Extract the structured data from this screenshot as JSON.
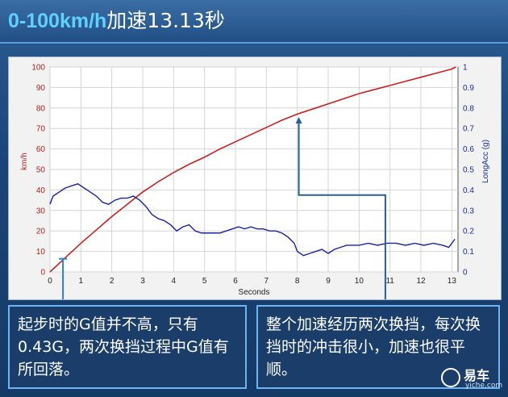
{
  "header": {
    "title_highlight": "0-100km/h",
    "title_rest": "加速13.13秒"
  },
  "callouts": {
    "left": "起步时的G值并不高，只有0.43G，两次换挡过程中G值有所回落。",
    "right": "整个加速经历两次换挡，每次换挡时的冲击很小，加速也很平顺。"
  },
  "logo": {
    "text": "易车",
    "sub": "yiche.com"
  },
  "colors": {
    "speed_line": "#cc1f1f",
    "acc_line": "#1c22a8",
    "callout_border": "#6fb3f0",
    "left_axis_text": "#b01f1f",
    "right_axis_text": "#1a2a9c"
  },
  "chart_data": {
    "type": "line",
    "xlabel": "Seconds",
    "ylabel": "km/h",
    "y2label": "LongAcc (g)",
    "xlim": [
      0,
      13.2
    ],
    "ylim": [
      0,
      100
    ],
    "y2lim": [
      0,
      1
    ],
    "x_ticks": [
      "0",
      "1",
      "2",
      "3",
      "4",
      "5",
      "6",
      "7",
      "8",
      "9",
      "10",
      "11",
      "12",
      "13"
    ],
    "y_ticks": [
      "0",
      "10",
      "20",
      "30",
      "40",
      "50",
      "60",
      "70",
      "80",
      "90",
      "100"
    ],
    "y2_ticks": [
      "0",
      "0.1",
      "0.2",
      "0.3",
      "0.4",
      "0.5",
      "0.6",
      "0.7",
      "0.8",
      "0.9",
      "1"
    ],
    "grid": true,
    "series": [
      {
        "name": "km/h",
        "axis": "left",
        "x": [
          0,
          0.5,
          1,
          1.5,
          2,
          2.5,
          3,
          3.5,
          4,
          4.5,
          5,
          5.5,
          6,
          6.5,
          7,
          7.5,
          8,
          8.5,
          9,
          9.5,
          10,
          10.5,
          11,
          11.5,
          12,
          12.5,
          13,
          13.13
        ],
        "values": [
          0,
          7,
          14,
          20.5,
          27,
          33,
          39,
          44,
          48.5,
          52.5,
          56,
          60,
          63.5,
          67,
          70.5,
          74,
          77,
          79.5,
          82,
          84.5,
          87,
          89,
          91,
          93,
          95,
          97,
          99,
          100
        ]
      },
      {
        "name": "LongAcc (g)",
        "axis": "right",
        "x": [
          0,
          0.1,
          0.3,
          0.5,
          0.7,
          0.9,
          1.1,
          1.3,
          1.5,
          1.7,
          1.9,
          2.1,
          2.3,
          2.5,
          2.7,
          2.9,
          3.1,
          3.3,
          3.5,
          3.7,
          3.9,
          4.1,
          4.3,
          4.5,
          4.7,
          4.9,
          5.1,
          5.3,
          5.5,
          5.7,
          5.9,
          6.1,
          6.3,
          6.5,
          6.7,
          6.9,
          7.1,
          7.3,
          7.5,
          7.7,
          7.9,
          8.0,
          8.2,
          8.4,
          8.6,
          8.8,
          9.0,
          9.2,
          9.4,
          9.6,
          9.8,
          10.0,
          10.3,
          10.6,
          10.9,
          11.2,
          11.5,
          11.8,
          12.1,
          12.4,
          12.7,
          12.9,
          13.1
        ],
        "values": [
          0.33,
          0.37,
          0.39,
          0.41,
          0.42,
          0.43,
          0.41,
          0.39,
          0.37,
          0.34,
          0.33,
          0.35,
          0.36,
          0.36,
          0.37,
          0.35,
          0.32,
          0.28,
          0.26,
          0.25,
          0.23,
          0.2,
          0.22,
          0.23,
          0.2,
          0.19,
          0.19,
          0.19,
          0.19,
          0.2,
          0.21,
          0.22,
          0.21,
          0.22,
          0.21,
          0.21,
          0.2,
          0.2,
          0.19,
          0.17,
          0.14,
          0.1,
          0.08,
          0.09,
          0.1,
          0.11,
          0.09,
          0.11,
          0.12,
          0.13,
          0.13,
          0.13,
          0.14,
          0.13,
          0.14,
          0.14,
          0.13,
          0.14,
          0.13,
          0.14,
          0.13,
          0.12,
          0.16
        ]
      }
    ]
  }
}
